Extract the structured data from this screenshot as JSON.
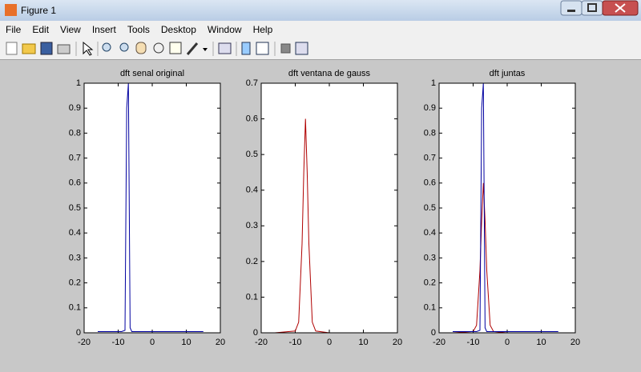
{
  "window": {
    "title": "Figure 1",
    "menu": [
      "File",
      "Edit",
      "View",
      "Insert",
      "Tools",
      "Desktop",
      "Window",
      "Help"
    ]
  },
  "chart_data": [
    {
      "type": "line",
      "title": "dft senal original",
      "x": [
        -16,
        -10,
        -9,
        -8,
        -7.5,
        -7,
        -6.5,
        -6,
        -5,
        -4,
        0,
        15
      ],
      "series": [
        {
          "color": "#0000a0",
          "values": [
            0.005,
            0.005,
            0.005,
            0.01,
            0.9,
            1,
            0.02,
            0.005,
            0.005,
            0.005,
            0.005,
            0.005
          ]
        }
      ],
      "xlim": [
        -20,
        20
      ],
      "xticks": [
        -20,
        -10,
        0,
        10,
        20
      ],
      "ylim": [
        0,
        1
      ],
      "yticks": [
        0,
        0.1,
        0.2,
        0.3,
        0.4,
        0.5,
        0.6,
        0.7,
        0.8,
        0.9,
        1
      ]
    },
    {
      "type": "line",
      "title": "dft ventana de gauss",
      "x": [
        -16,
        -10,
        -9,
        -8,
        -7.5,
        -7,
        -6.5,
        -6,
        -5,
        -4,
        0,
        15
      ],
      "series": [
        {
          "color": "#b00000",
          "values": [
            0,
            0.005,
            0.03,
            0.25,
            0.45,
            0.6,
            0.45,
            0.25,
            0.03,
            0.005,
            0,
            0
          ]
        }
      ],
      "xlim": [
        -20,
        20
      ],
      "xticks": [
        -20,
        -10,
        0,
        10,
        20
      ],
      "ylim": [
        0,
        0.7
      ],
      "yticks": [
        0,
        0.1,
        0.2,
        0.3,
        0.4,
        0.5,
        0.6,
        0.7
      ]
    },
    {
      "type": "line",
      "title": "dft juntas",
      "x": [
        -16,
        -10,
        -9,
        -8,
        -7.5,
        -7,
        -6.5,
        -6,
        -5,
        -4,
        0,
        15
      ],
      "series": [
        {
          "color": "#b00000",
          "values": [
            0,
            0.005,
            0.03,
            0.25,
            0.45,
            0.6,
            0.45,
            0.25,
            0.03,
            0.005,
            0,
            0
          ]
        },
        {
          "color": "#0000a0",
          "values": [
            0.005,
            0.005,
            0.005,
            0.01,
            0.9,
            1,
            0.02,
            0.005,
            0.005,
            0.005,
            0.005,
            0.005
          ]
        }
      ],
      "xlim": [
        -20,
        20
      ],
      "xticks": [
        -20,
        -10,
        0,
        10,
        20
      ],
      "ylim": [
        0,
        1
      ],
      "yticks": [
        0,
        0.1,
        0.2,
        0.3,
        0.4,
        0.5,
        0.6,
        0.7,
        0.8,
        0.9,
        1
      ]
    }
  ]
}
